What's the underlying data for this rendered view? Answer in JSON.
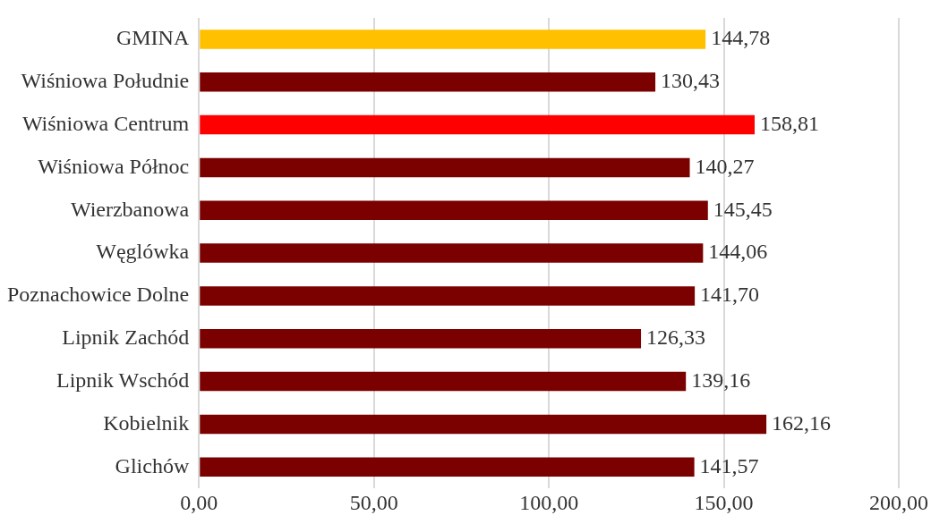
{
  "chart_data": {
    "type": "bar",
    "orientation": "horizontal",
    "categories": [
      "GMINA",
      "Wiśniowa Południe",
      "Wiśniowa Centrum",
      "Wiśniowa Północ",
      "Wierzbanowa",
      "Węglówka",
      "Poznachowice Dolne",
      "Lipnik Zachód",
      "Lipnik Wschód",
      "Kobielnik",
      "Glichów"
    ],
    "values": [
      144.78,
      130.43,
      158.81,
      140.27,
      145.45,
      144.06,
      141.7,
      126.33,
      139.16,
      162.16,
      141.57
    ],
    "colors": [
      "#ffc000",
      "#7b0000",
      "#ff0000",
      "#7b0000",
      "#7b0000",
      "#7b0000",
      "#7b0000",
      "#7b0000",
      "#7b0000",
      "#7b0000",
      "#7b0000"
    ],
    "value_labels": [
      "144,78",
      "130,43",
      "158,81",
      "140,27",
      "145,45",
      "144,06",
      "141,70",
      "126,33",
      "139,16",
      "162,16",
      "141,57"
    ],
    "xlim": [
      0,
      200
    ],
    "xticks": [
      {
        "value": 0,
        "label": "0,00"
      },
      {
        "value": 50,
        "label": "50,00"
      },
      {
        "value": 100,
        "label": "100,00"
      },
      {
        "value": 150,
        "label": "150,00"
      },
      {
        "value": 200,
        "label": "200,00"
      }
    ],
    "grid": "x",
    "legend": false
  }
}
